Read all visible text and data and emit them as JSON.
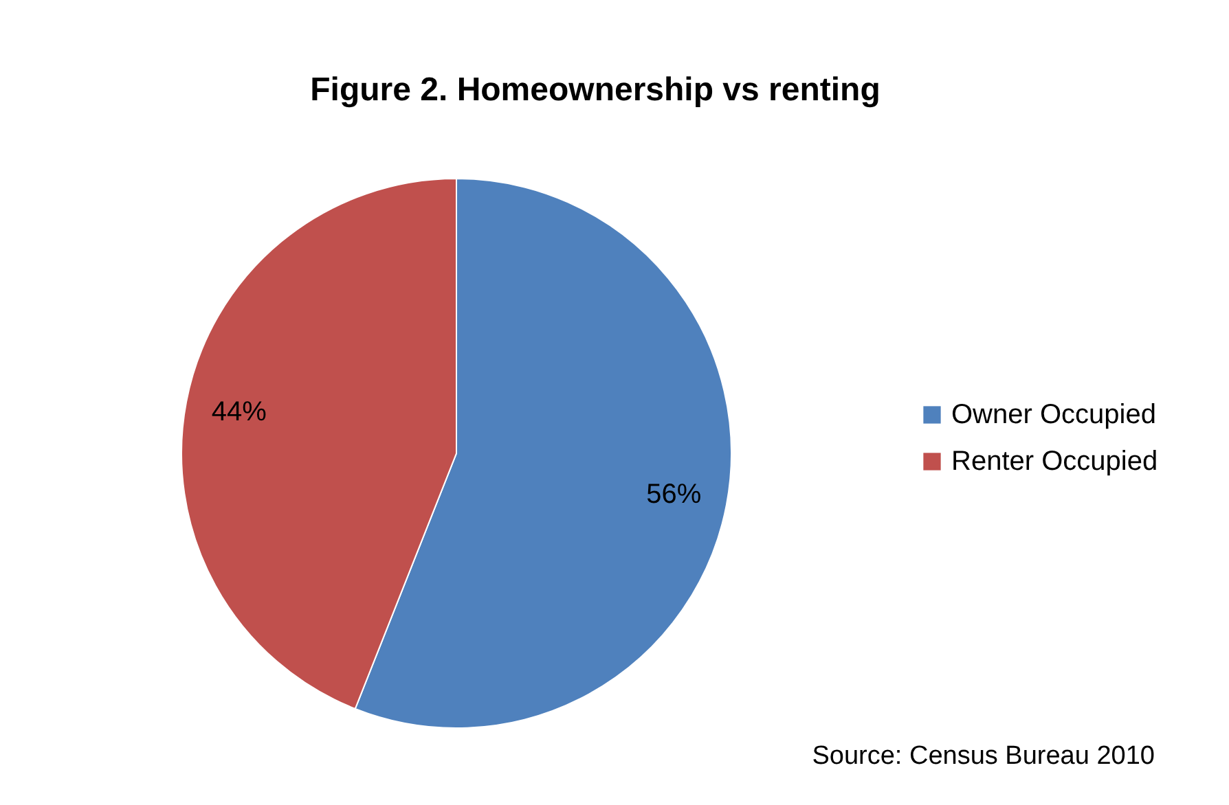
{
  "chart_data": {
    "type": "pie",
    "title": "Figure 2. Homeownership vs renting",
    "categories": [
      "Owner Occupied",
      "Renter Occupied"
    ],
    "values": [
      56,
      44
    ],
    "colors": [
      "#4f81bd",
      "#c0504d"
    ],
    "value_labels": [
      "56%",
      "44%"
    ],
    "legend": "right",
    "annotations": [
      "Source: Census Bureau 2010"
    ]
  }
}
